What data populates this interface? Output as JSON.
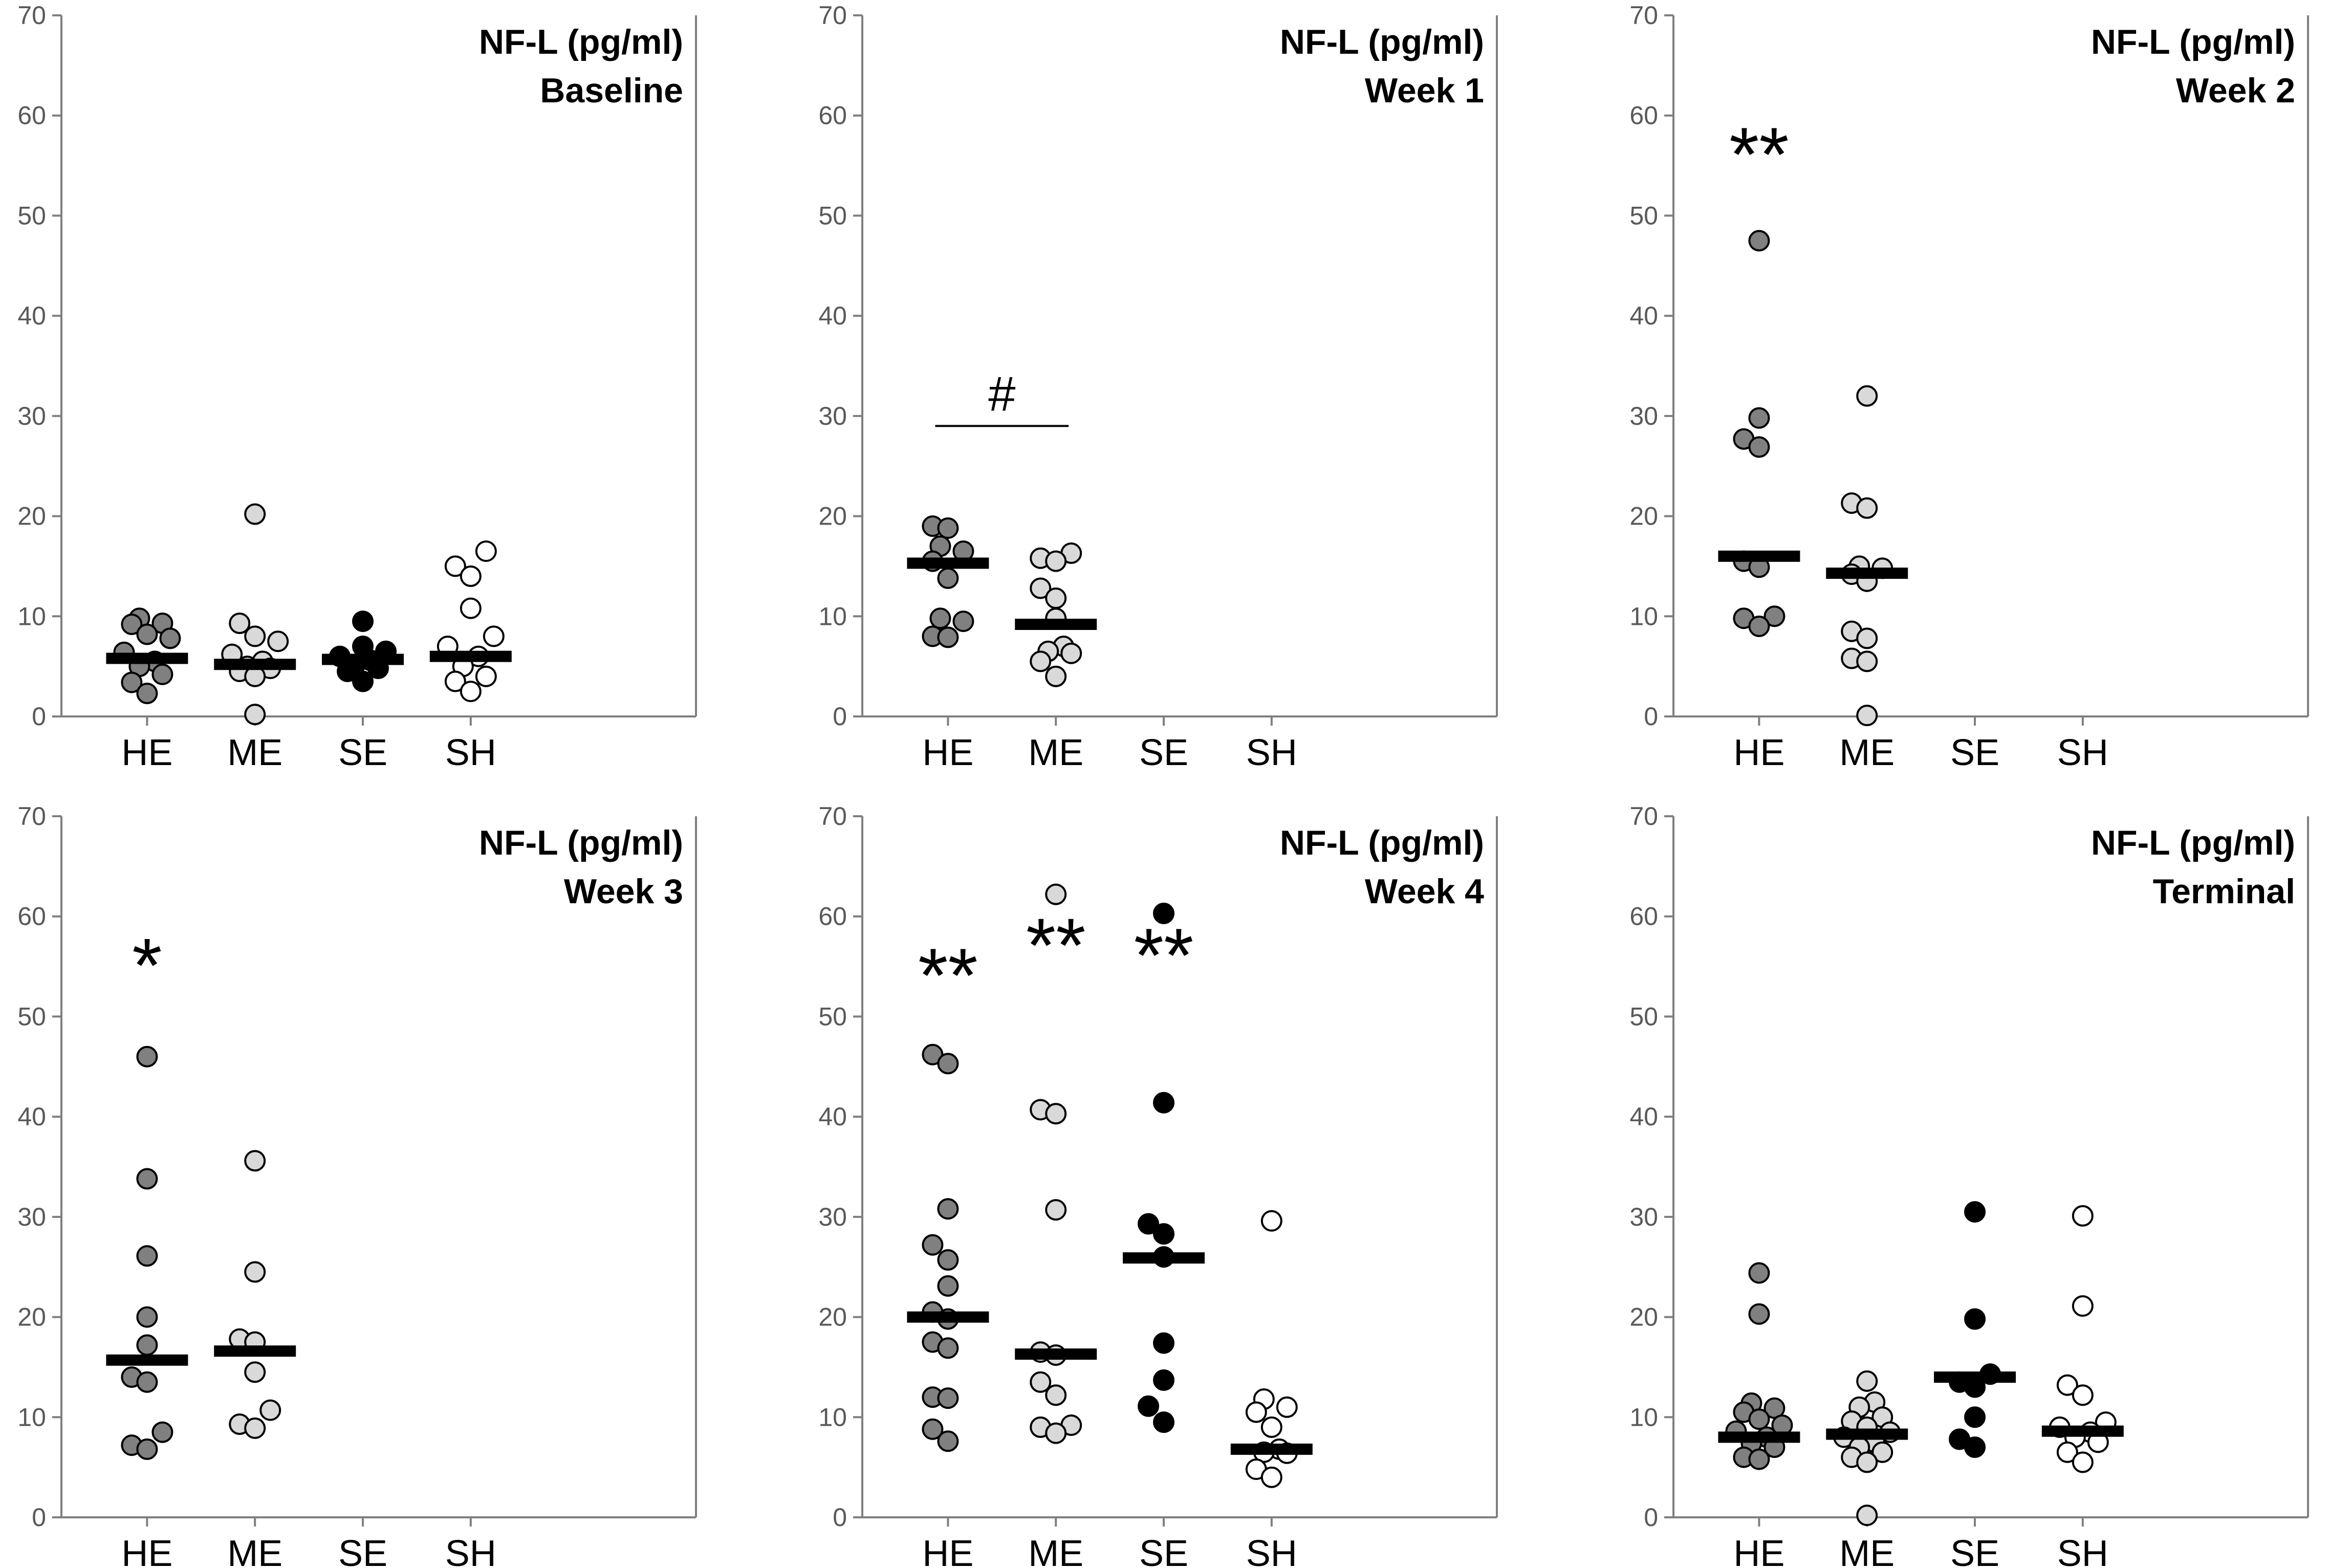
{
  "chart_data": [
    {
      "type": "scatter",
      "panel": "Baseline",
      "title": "NF-L (pg/ml)",
      "subtitle": "Baseline",
      "ylim": [
        0,
        70
      ],
      "yticks": [
        0,
        10,
        20,
        30,
        40,
        50,
        60,
        70
      ],
      "categories": [
        "HE",
        "ME",
        "SE",
        "SH"
      ],
      "series": [
        {
          "name": "HE",
          "values": [
            9.3,
            9.8,
            9.2,
            8.2,
            7.8,
            6.4,
            5.5,
            5.0,
            4.2,
            3.4,
            2.3
          ],
          "median": 5.8
        },
        {
          "name": "ME",
          "values": [
            20.2,
            9.3,
            8.0,
            7.5,
            6.2,
            5.5,
            5.0,
            4.8,
            4.5,
            4.0,
            0.2
          ],
          "median": 5.2
        },
        {
          "name": "SE",
          "values": [
            9.5,
            7.0,
            6.5,
            6.0,
            5.6,
            5.2,
            4.8,
            4.5,
            3.5
          ],
          "median": 5.7
        },
        {
          "name": "SH",
          "values": [
            16.5,
            15.0,
            14.0,
            10.8,
            8.0,
            7.0,
            6.0,
            5.0,
            4.0,
            3.5,
            2.5
          ],
          "median": 6.0
        }
      ],
      "annotations": []
    },
    {
      "type": "scatter",
      "panel": "Week 1",
      "title": "NF-L (pg/ml)",
      "subtitle": "Week 1",
      "ylim": [
        0,
        70
      ],
      "yticks": [
        0,
        10,
        20,
        30,
        40,
        50,
        60,
        70
      ],
      "categories": [
        "HE",
        "ME",
        "SE",
        "SH"
      ],
      "series": [
        {
          "name": "HE",
          "values": [
            19.0,
            18.8,
            17.0,
            16.5,
            15.5,
            13.8,
            9.8,
            9.5,
            8.0,
            7.9
          ],
          "median": 15.3
        },
        {
          "name": "ME",
          "values": [
            16.3,
            15.8,
            15.5,
            12.8,
            11.8,
            9.8,
            7.0,
            6.5,
            6.3,
            5.5,
            4.0
          ],
          "median": 9.2
        },
        {
          "name": "SE",
          "values": [],
          "median": null
        },
        {
          "name": "SH",
          "values": [],
          "median": null
        }
      ],
      "annotations": [
        {
          "text": "#",
          "type": "bracket",
          "from": "HE",
          "to": "ME",
          "y": 29
        }
      ]
    },
    {
      "type": "scatter",
      "panel": "Week 2",
      "title": "NF-L (pg/ml)",
      "subtitle": "Week 2",
      "ylim": [
        0,
        70
      ],
      "yticks": [
        0,
        10,
        20,
        30,
        40,
        50,
        60,
        70
      ],
      "categories": [
        "HE",
        "ME",
        "SE",
        "SH"
      ],
      "series": [
        {
          "name": "HE",
          "values": [
            47.5,
            29.8,
            27.7,
            26.9,
            15.5,
            14.9,
            10.0,
            9.8,
            9.0
          ],
          "median": 16.0
        },
        {
          "name": "ME",
          "values": [
            32.0,
            21.3,
            20.8,
            15.0,
            14.8,
            14.2,
            13.5,
            8.5,
            7.8,
            5.8,
            5.5,
            0.1
          ],
          "median": 14.3
        },
        {
          "name": "SE",
          "values": [],
          "median": null
        },
        {
          "name": "SH",
          "values": [],
          "median": null
        }
      ],
      "annotations": [
        {
          "text": "**",
          "category": "HE",
          "y": 55
        }
      ]
    },
    {
      "type": "scatter",
      "panel": "Week 3",
      "title": "NF-L (pg/ml)",
      "subtitle": "Week 3",
      "ylim": [
        0,
        70
      ],
      "yticks": [
        0,
        10,
        20,
        30,
        40,
        50,
        60,
        70
      ],
      "categories": [
        "HE",
        "ME",
        "SE",
        "SH"
      ],
      "series": [
        {
          "name": "HE",
          "values": [
            46.0,
            33.8,
            26.1,
            20.0,
            17.2,
            14.0,
            13.5,
            8.5,
            7.2,
            6.8
          ],
          "median": 15.7
        },
        {
          "name": "ME",
          "values": [
            35.6,
            24.5,
            17.8,
            17.5,
            14.5,
            10.7,
            9.3,
            8.9
          ],
          "median": 16.6
        },
        {
          "name": "SE",
          "values": [],
          "median": null
        },
        {
          "name": "SH",
          "values": [],
          "median": null
        }
      ],
      "annotations": [
        {
          "text": "*",
          "category": "HE",
          "y": 54
        }
      ]
    },
    {
      "type": "scatter",
      "panel": "Week 4",
      "title": "NF-L (pg/ml)",
      "subtitle": "Week 4",
      "ylim": [
        0,
        70
      ],
      "yticks": [
        0,
        10,
        20,
        30,
        40,
        50,
        60,
        70
      ],
      "categories": [
        "HE",
        "ME",
        "SE",
        "SH"
      ],
      "series": [
        {
          "name": "HE",
          "values": [
            46.2,
            45.3,
            30.8,
            27.2,
            25.7,
            23.1,
            20.5,
            19.8,
            17.5,
            16.9,
            12.0,
            11.9,
            8.8,
            7.6
          ],
          "median": 20.0
        },
        {
          "name": "ME",
          "values": [
            62.2,
            40.7,
            40.3,
            30.7,
            16.5,
            16.2,
            13.5,
            12.2,
            9.2,
            9.0,
            8.4
          ],
          "median": 16.3
        },
        {
          "name": "SE",
          "values": [
            60.3,
            41.4,
            29.3,
            28.3,
            26.0,
            17.4,
            13.7,
            11.1,
            9.5
          ],
          "median": 25.9
        },
        {
          "name": "SH",
          "values": [
            29.6,
            11.8,
            11.0,
            10.5,
            9.0,
            6.8,
            6.5,
            6.4,
            4.8,
            4.0
          ],
          "median": 6.8
        }
      ],
      "annotations": [
        {
          "text": "**",
          "category": "HE",
          "y": 53
        },
        {
          "text": "**",
          "category": "ME",
          "y": 56
        },
        {
          "text": "**",
          "category": "SE",
          "y": 55
        }
      ]
    },
    {
      "type": "scatter",
      "panel": "Terminal",
      "title": "NF-L (pg/ml)",
      "subtitle": "Terminal",
      "ylim": [
        0,
        70
      ],
      "yticks": [
        0,
        10,
        20,
        30,
        40,
        50,
        60,
        70
      ],
      "categories": [
        "HE",
        "ME",
        "SE",
        "SH"
      ],
      "series": [
        {
          "name": "HE",
          "values": [
            24.4,
            20.3,
            11.4,
            10.9,
            10.5,
            9.8,
            9.2,
            8.6,
            8.0,
            7.4,
            7.0,
            6.0,
            5.8
          ],
          "median": 8.0
        },
        {
          "name": "ME",
          "values": [
            13.6,
            11.5,
            11.0,
            10.0,
            9.6,
            9.0,
            8.5,
            8.0,
            7.5,
            7.0,
            6.5,
            6.0,
            5.5,
            0.2
          ],
          "median": 8.3
        },
        {
          "name": "SE",
          "values": [
            30.5,
            19.8,
            14.3,
            13.5,
            13.0,
            10.0,
            7.8,
            7.0
          ],
          "median": 14.0
        },
        {
          "name": "SH",
          "values": [
            30.1,
            21.1,
            13.2,
            12.2,
            9.5,
            9.0,
            8.5,
            8.0,
            7.5,
            6.5,
            5.5
          ],
          "median": 8.6
        }
      ],
      "annotations": []
    }
  ],
  "colors": {
    "HE": "#808080",
    "ME": "#d9d9d9",
    "SE": "#000000",
    "SH": "#ffffff",
    "median": "#000000",
    "axis": "#7f7f7f",
    "tick_text": "#595959"
  }
}
